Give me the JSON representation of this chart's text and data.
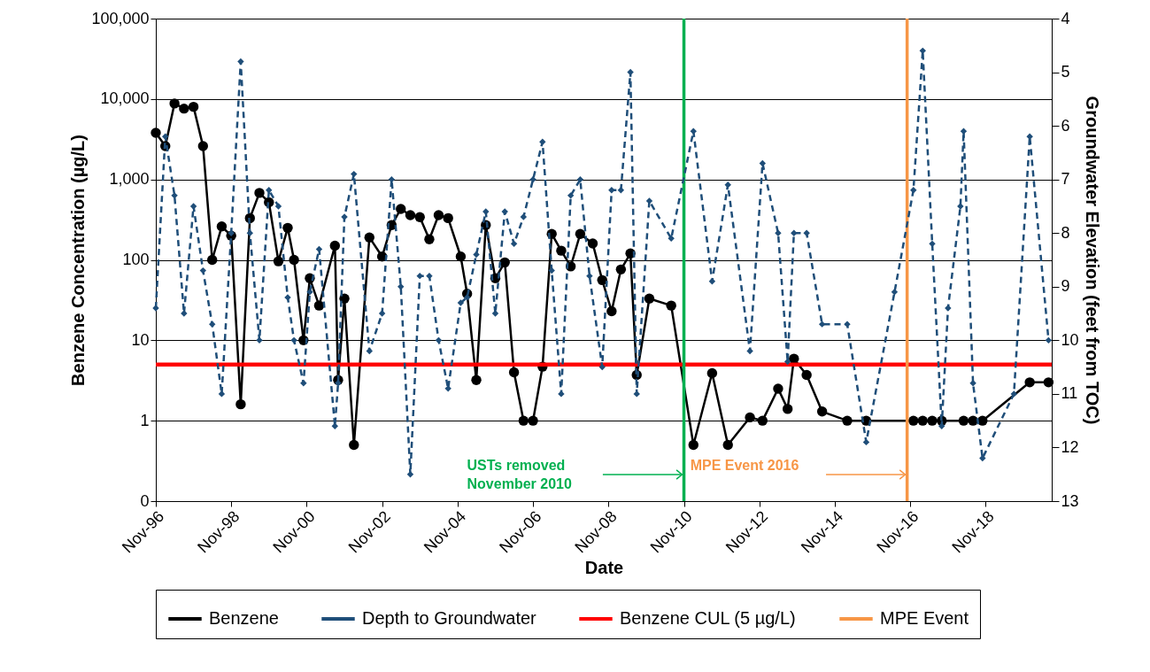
{
  "chart_data": {
    "type": "line",
    "xlabel": "Date",
    "ylabel": "Benzene Concentration (µg/L)",
    "y2label": "Groundwater Elevation (feet from TOC)",
    "xlim": [
      "1996-11",
      "2020-08"
    ],
    "xticks": [
      {
        "value": "1996-11",
        "label": "Nov-96"
      },
      {
        "value": "1998-11",
        "label": "Nov-98"
      },
      {
        "value": "2000-11",
        "label": "Nov-00"
      },
      {
        "value": "2002-11",
        "label": "Nov-02"
      },
      {
        "value": "2004-11",
        "label": "Nov-04"
      },
      {
        "value": "2006-11",
        "label": "Nov-06"
      },
      {
        "value": "2008-11",
        "label": "Nov-08"
      },
      {
        "value": "2010-11",
        "label": "Nov-10"
      },
      {
        "value": "2012-11",
        "label": "Nov-12"
      },
      {
        "value": "2014-11",
        "label": "Nov-14"
      },
      {
        "value": "2016-11",
        "label": "Nov-16"
      },
      {
        "value": "2018-11",
        "label": "Nov-18"
      }
    ],
    "log": "y",
    "ylim": [
      0.1,
      100000
    ],
    "yticks": [
      {
        "value": 0.1,
        "label": "0"
      },
      1,
      10,
      100,
      {
        "value": 1000,
        "label": "1,000"
      },
      {
        "value": 10000,
        "label": "10,000"
      },
      {
        "value": 100000,
        "label": "100,000"
      }
    ],
    "y2lim": [
      13,
      4
    ],
    "y2ticks": [
      4,
      5,
      6,
      7,
      8,
      9,
      10,
      11,
      12,
      13
    ],
    "grid": "y",
    "legend": "bottom",
    "series": [
      {
        "name": "Benzene",
        "color": "#000000",
        "marker": "circle",
        "line_style": "solid",
        "x": [
          "1996-11",
          "1997-02",
          "1997-05",
          "1997-08",
          "1997-11",
          "1998-02",
          "1998-05",
          "1998-08",
          "1998-11",
          "1999-02",
          "1999-05",
          "1999-08",
          "1999-11",
          "2000-02",
          "2000-05",
          "2000-07",
          "2000-10",
          "2000-12",
          "2001-03",
          "2001-08",
          "2001-09",
          "2001-11",
          "2002-02",
          "2002-07",
          "2002-11",
          "2003-02",
          "2003-05",
          "2003-08",
          "2003-11",
          "2004-02",
          "2004-05",
          "2004-08",
          "2004-12",
          "2005-02",
          "2005-05",
          "2005-08",
          "2005-11",
          "2006-02",
          "2006-05",
          "2006-08",
          "2006-11",
          "2007-02",
          "2007-05",
          "2007-08",
          "2007-11",
          "2008-02",
          "2008-06",
          "2008-09",
          "2008-12",
          "2009-03",
          "2009-06",
          "2009-08",
          "2009-12",
          "2010-07",
          "2011-02",
          "2011-08",
          "2012-01",
          "2012-08",
          "2012-12",
          "2013-05",
          "2013-08",
          "2013-10",
          "2014-02",
          "2014-07",
          "2015-03",
          "2015-09",
          "2016-12",
          "2017-03",
          "2017-06",
          "2017-09",
          "2018-04",
          "2018-07",
          "2018-10",
          "2020-01",
          "2020-07"
        ],
        "values": [
          3800,
          2600,
          8800,
          7600,
          8000,
          2600,
          100,
          260,
          200,
          1.6,
          330,
          680,
          520,
          96,
          250,
          100,
          10,
          59,
          27,
          150,
          3.2,
          33,
          0.5,
          190,
          110,
          270,
          430,
          360,
          340,
          180,
          360,
          330,
          110,
          38,
          3.2,
          270,
          59,
          93,
          4,
          1,
          1,
          4.7,
          210,
          130,
          83,
          210,
          160,
          56,
          23,
          76,
          120,
          3.7,
          33,
          27,
          0.5,
          3.9,
          0.5,
          1.1,
          1,
          2.5,
          1.4,
          5.9,
          3.7,
          1.3,
          1,
          1,
          1,
          1,
          1,
          1,
          1,
          1,
          1,
          3,
          3
        ]
      },
      {
        "name": "Depth to Groundwater",
        "axis": "y2",
        "color": "#1f4e79",
        "marker": "diamond",
        "line_style": "dashed",
        "x": [
          "1996-11",
          "1997-02",
          "1997-05",
          "1997-08",
          "1997-11",
          "1998-02",
          "1998-05",
          "1998-08",
          "1998-11",
          "1999-02",
          "1999-05",
          "1999-08",
          "1999-11",
          "2000-02",
          "2000-05",
          "2000-07",
          "2000-10",
          "2000-12",
          "2001-03",
          "2001-08",
          "2001-09",
          "2001-11",
          "2002-02",
          "2002-07",
          "2002-11",
          "2003-02",
          "2003-05",
          "2003-08",
          "2003-11",
          "2004-02",
          "2004-05",
          "2004-08",
          "2004-12",
          "2005-02",
          "2005-05",
          "2005-08",
          "2005-11",
          "2006-02",
          "2006-05",
          "2006-08",
          "2006-11",
          "2007-02",
          "2007-05",
          "2007-08",
          "2007-11",
          "2008-02",
          "2008-05",
          "2008-09",
          "2008-12",
          "2009-03",
          "2009-06",
          "2009-08",
          "2009-12",
          "2010-07",
          "2011-02",
          "2011-08",
          "2012-01",
          "2012-08",
          "2012-12",
          "2013-05",
          "2013-08",
          "2013-10",
          "2014-02",
          "2014-07",
          "2015-03",
          "2015-09",
          "2016-06",
          "2016-12",
          "2017-03",
          "2017-06",
          "2017-09",
          "2017-11",
          "2018-03",
          "2018-04",
          "2018-07",
          "2018-10",
          "2019-08",
          "2020-01",
          "2020-07"
        ],
        "values": [
          9.4,
          6.2,
          7.3,
          9.5,
          7.5,
          8.7,
          9.7,
          11.0,
          8.0,
          4.8,
          8.0,
          10.0,
          7.2,
          7.5,
          9.2,
          10.0,
          10.8,
          9.1,
          8.3,
          11.6,
          10.8,
          7.7,
          6.9,
          10.2,
          9.5,
          7.0,
          9.0,
          12.5,
          8.8,
          8.8,
          10.0,
          10.9,
          9.3,
          9.2,
          8.4,
          7.6,
          9.5,
          7.6,
          8.2,
          7.7,
          7.0,
          6.3,
          8.7,
          11.0,
          7.3,
          7.0,
          8.8,
          10.5,
          7.2,
          7.2,
          5.0,
          11.0,
          7.4,
          8.1,
          6.1,
          8.9,
          7.1,
          10.2,
          6.7,
          8.0,
          10.4,
          8.0,
          8.0,
          9.7,
          9.7,
          11.9,
          9.1,
          7.2,
          4.6,
          8.2,
          11.6,
          9.4,
          7.5,
          6.1,
          10.8,
          12.2,
          11.0,
          6.2,
          10.0
        ]
      }
    ],
    "ref_lines": [
      {
        "axis": "y",
        "value": 5,
        "label": "Benzene CUL (5 µg/L)",
        "color": "#ff0000"
      },
      {
        "axis": "x",
        "value": "2010-11",
        "label": null,
        "color": "#00b050"
      },
      {
        "axis": "x",
        "value": "2016-10",
        "label": "MPE Event",
        "color": "#f79646"
      }
    ],
    "annotations": [
      "USTs removed\nNovember 2010",
      "MPE Event 2016"
    ]
  }
}
